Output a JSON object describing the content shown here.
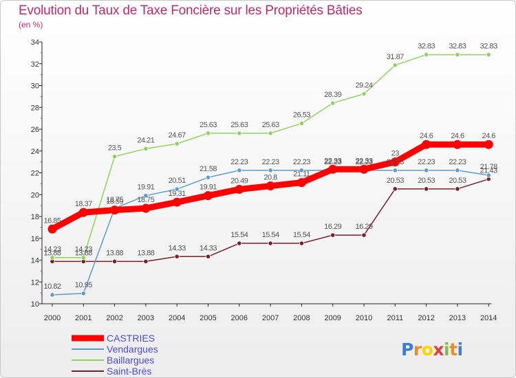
{
  "chart_data": {
    "type": "line",
    "title": "Evolution du Taux de Taxe Foncière sur les Propriétés Bâties",
    "unit_label": "(en %)",
    "x": [
      "2000",
      "2001",
      "2002",
      "2003",
      "2004",
      "2005",
      "2006",
      "2007",
      "2008",
      "2009",
      "2010",
      "2011",
      "2012",
      "2013",
      "2014"
    ],
    "ylim": [
      10,
      34
    ],
    "yticks": [
      10,
      12,
      14,
      16,
      18,
      20,
      22,
      24,
      26,
      28,
      30,
      32,
      34
    ],
    "grid": false,
    "legend_position": "bottom-left",
    "series": [
      {
        "name": "CASTRIES",
        "color": "#ff0000",
        "values": [
          16.85,
          18.37,
          18.59,
          18.75,
          19.31,
          19.91,
          20.49,
          20.8,
          21.11,
          22.33,
          22.33,
          23,
          24.6,
          24.6,
          24.6
        ],
        "labels": [
          "16.85",
          "18.37",
          "18.59",
          "18.75",
          "19.31",
          "19.91",
          "20.49",
          "20.8",
          "21.11",
          "22.33",
          "22.33",
          "23",
          "24.6",
          "24.6",
          "24.6"
        ]
      },
      {
        "name": "Vendargues",
        "color": "#5a9bd5",
        "values": [
          10.82,
          10.95,
          18.75,
          19.91,
          20.51,
          21.58,
          22.23,
          22.23,
          22.23,
          22.23,
          22.23,
          22.23,
          22.23,
          22.23,
          21.78
        ],
        "labels": [
          "10.82",
          "10.95",
          "18.75",
          "19.91",
          "20.51",
          "21.58",
          "22.23",
          "22.23",
          "22.23",
          "22.23",
          "22.23",
          "22.23",
          "22.23",
          "22.23",
          "21.78"
        ]
      },
      {
        "name": "Baillargues",
        "color": "#8ed45a",
        "values": [
          14.23,
          14.23,
          23.5,
          24.21,
          24.67,
          25.63,
          25.63,
          25.63,
          26.53,
          28.39,
          29.24,
          31.87,
          32.83,
          32.83,
          32.83
        ],
        "labels": [
          "14.23",
          "14.23",
          "23.5",
          "24.21",
          "24.67",
          "25.63",
          "25.63",
          "25.63",
          "26.53",
          "28.39",
          "29.24",
          "31.87",
          "32.83",
          "32.83",
          "32.83"
        ]
      },
      {
        "name": "Saint-Brès",
        "color": "#7a1e28",
        "values": [
          13.88,
          13.88,
          13.88,
          13.88,
          14.33,
          14.33,
          15.54,
          15.54,
          15.54,
          16.29,
          16.29,
          20.53,
          20.53,
          20.53,
          21.43
        ],
        "labels": [
          "13.88",
          "13.88",
          "13.88",
          "13.88",
          "14.33",
          "14.33",
          "15.54",
          "15.54",
          "15.54",
          "16.29",
          "16.29",
          "20.53",
          "20.53",
          "20.53",
          "21.43"
        ]
      }
    ]
  },
  "logo": {
    "text": "Proxiti",
    "letters": [
      "P",
      "r",
      "o",
      "x",
      "i",
      "t",
      "i"
    ],
    "colors": [
      "#3a7fd5",
      "#f08a24",
      "#ffd400",
      "#e43c3c",
      "#7cc242",
      "#f08a24",
      "#3a7fd5"
    ]
  }
}
